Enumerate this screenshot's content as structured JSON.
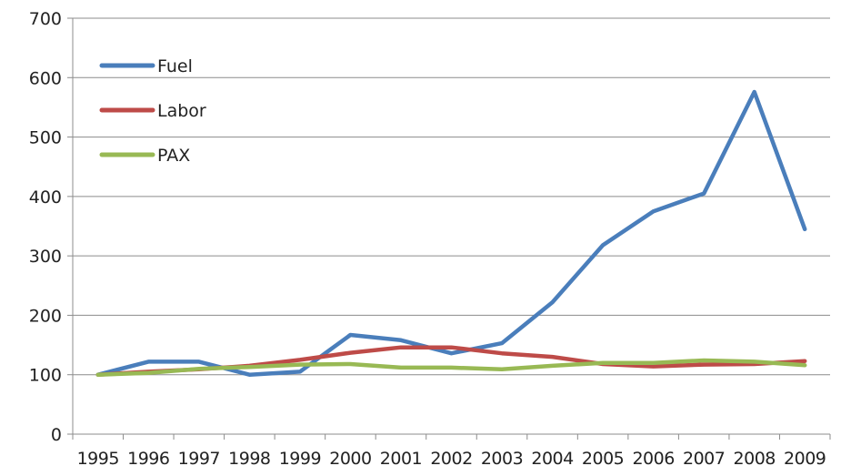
{
  "chart_data": {
    "type": "line",
    "title": "",
    "xlabel": "",
    "ylabel": "",
    "ylim": [
      0,
      700
    ],
    "yticks": [
      0,
      100,
      200,
      300,
      400,
      500,
      600,
      700
    ],
    "grid": "horizontal",
    "legend_position": "top-left",
    "categories": [
      "1995",
      "1996",
      "1997",
      "1998",
      "1999",
      "2000",
      "2001",
      "2002",
      "2003",
      "2004",
      "2005",
      "2006",
      "2007",
      "2008",
      "2009"
    ],
    "series": [
      {
        "name": "Fuel",
        "color": "#4a7ebb",
        "values": [
          100,
          122,
          122,
          100,
          105,
          167,
          158,
          136,
          153,
          222,
          318,
          375,
          405,
          576,
          345
        ]
      },
      {
        "name": "Labor",
        "color": "#be4b48",
        "values": [
          100,
          105,
          109,
          115,
          125,
          137,
          146,
          146,
          136,
          130,
          118,
          114,
          117,
          118,
          123
        ]
      },
      {
        "name": "PAX",
        "color": "#98b954",
        "values": [
          100,
          103,
          110,
          113,
          117,
          118,
          112,
          112,
          109,
          115,
          120,
          120,
          124,
          122,
          116
        ]
      }
    ]
  }
}
